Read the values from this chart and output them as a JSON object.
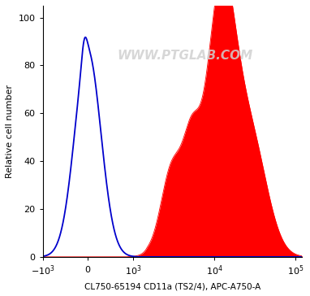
{
  "title": "",
  "xlabel": "CL750-65194 CD11a (TS2/4), APC-A750-A",
  "ylabel": "Relative cell number",
  "ylim": [
    0,
    105
  ],
  "yticks": [
    0,
    20,
    40,
    60,
    80,
    100
  ],
  "watermark": "WWW.PTGLAB.COM",
  "blue_color": "#0000cc",
  "red_color": "#ff0000",
  "background_color": "#ffffff",
  "watermark_color": "#d0d0d0",
  "linthresh": 1000,
  "linscale": 0.5
}
